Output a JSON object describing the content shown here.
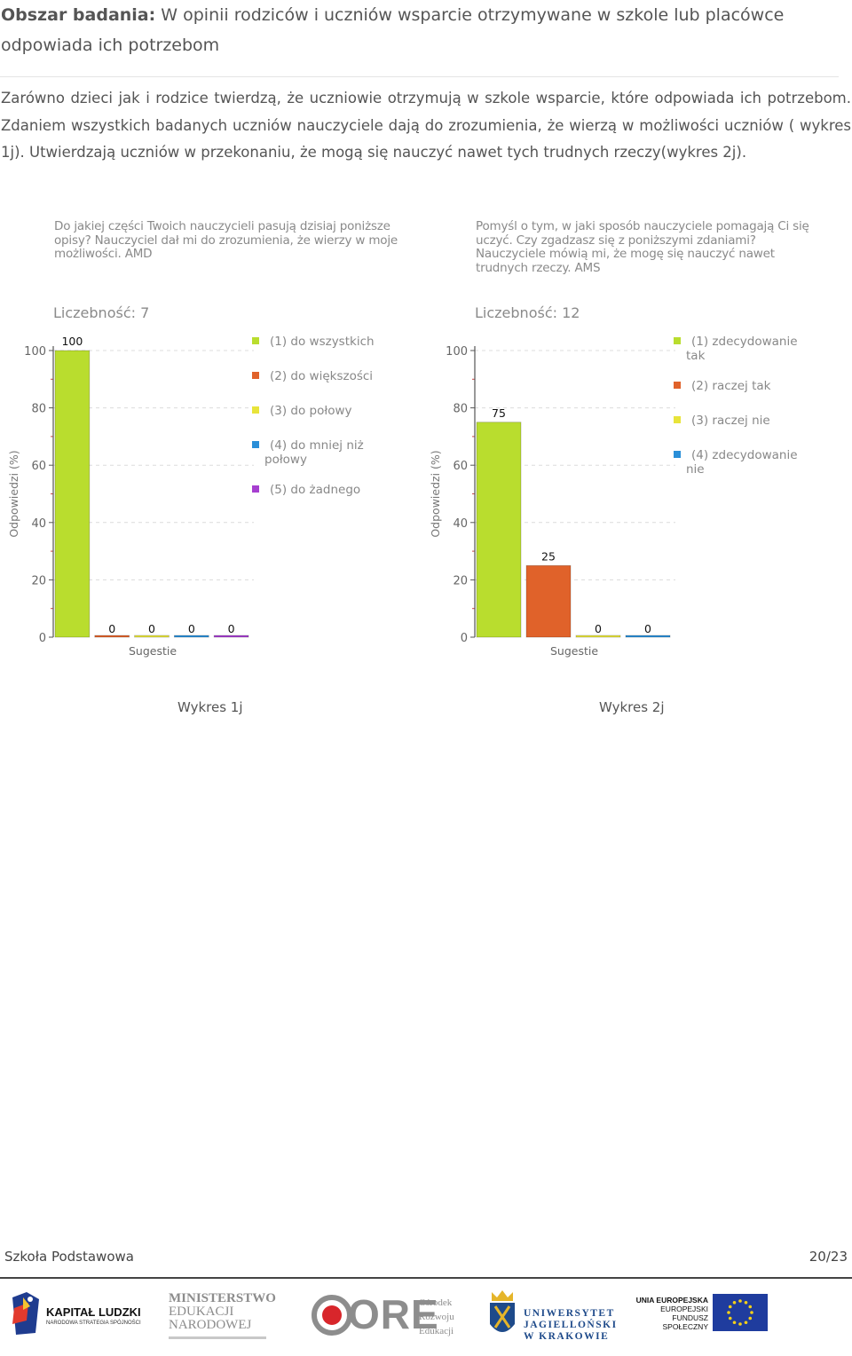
{
  "header": {
    "label": "Obszar badania:",
    "title": "W opinii rodziców i uczniów wsparcie otrzymywane w szkole lub placówce odpowiada ich potrzebom"
  },
  "intro": "Zarówno dzieci jak i rodzice twierdzą, że uczniowie otrzymują w szkole wsparcie, które odpowiada ich potrzebom. Zdaniem wszystkich badanych uczniów nauczyciele dają do zrozumienia, że wierzą w możliwości uczniów ( wykres 1j). Utwierdzają uczniów w przekonaniu, że mogą się nauczyć nawet tych trudnych rzeczy(wykres 2j).",
  "chart_data": [
    {
      "type": "bar",
      "question": "Do jakiej części Twoich nauczycieli pasują dzisiaj poniższe opisy? Nauczyciel dał mi do zrozumienia, że wierzy w moje możliwości. AMD",
      "count_label": "Liczebność: 7",
      "xlabel": "Sugestie",
      "ylabel": "Odpowiedzi (%)",
      "ylim": [
        0,
        100
      ],
      "yticks": [
        0,
        20,
        40,
        60,
        80,
        100
      ],
      "grid": true,
      "legend": "right",
      "series": [
        {
          "name": "(1) do wszystkich",
          "value": 100,
          "color": "#b9dd2e"
        },
        {
          "name": "(2) do większości",
          "value": 0,
          "color": "#e0622a"
        },
        {
          "name": "(3) do połowy",
          "value": 0,
          "color": "#e8e43a"
        },
        {
          "name": "(4) do mniej niż połowy",
          "value": 0,
          "color": "#2a8fd8"
        },
        {
          "name": "(5) do żadnego",
          "value": 0,
          "color": "#a63fd0"
        }
      ],
      "caption": "Wykres 1j"
    },
    {
      "type": "bar",
      "question": "Pomyśl o tym, w jaki sposób nauczyciele pomagają Ci się uczyć. Czy zgadzasz się z poniższymi zdaniami? Nauczyciele mówią mi, że mogę się nauczyć nawet trudnych rzeczy. AMS",
      "count_label": "Liczebność: 12",
      "xlabel": "Sugestie",
      "ylabel": "Odpowiedzi (%)",
      "ylim": [
        0,
        100
      ],
      "yticks": [
        0,
        20,
        40,
        60,
        80,
        100
      ],
      "grid": true,
      "legend": "right",
      "series": [
        {
          "name": "(1) zdecydowanie tak",
          "value": 75,
          "color": "#b9dd2e"
        },
        {
          "name": "(2) raczej tak",
          "value": 25,
          "color": "#e0622a"
        },
        {
          "name": "(3) raczej nie",
          "value": 0,
          "color": "#e8e43a"
        },
        {
          "name": "(4) zdecydowanie nie",
          "value": 0,
          "color": "#2a8fd8"
        }
      ],
      "caption": "Wykres 2j"
    }
  ],
  "footer": {
    "school": "Szkoła Podstawowa",
    "page": "20/23"
  },
  "logos": {
    "kl_title": "KAPITAŁ LUDZKI",
    "kl_sub": "NARODOWA STRATEGIA SPÓJNOŚCI",
    "men_1": "MINISTERSTWO",
    "men_2": "EDUKACJI",
    "men_3": "NARODOWEJ",
    "ore": "ORE",
    "ore_1": "Ośrodek",
    "ore_2": "Rozwoju",
    "ore_3": "Edukacji",
    "uj_1": "UNIWERSYTET",
    "uj_2": "JAGIELLOŃSKI",
    "uj_3": "W KRAKOWIE",
    "ue_1": "UNIA EUROPEJSKA",
    "ue_2": "EUROPEJSKI",
    "ue_3": "FUNDUSZ SPOŁECZNY"
  }
}
